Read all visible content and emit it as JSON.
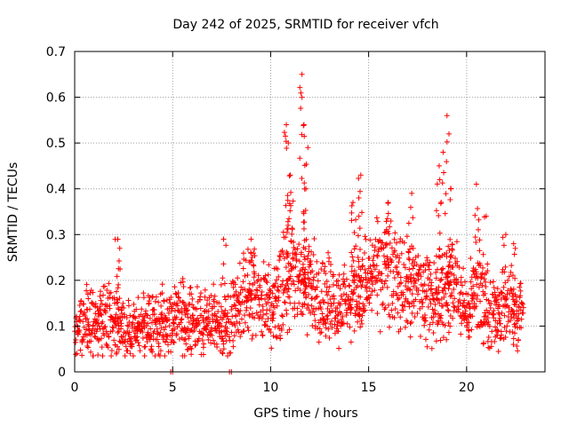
{
  "chart_data": {
    "type": "scatter",
    "title": "Day 242 of 2025, SRMTID for receiver vfch",
    "xlabel": "GPS time / hours",
    "ylabel": "SRMTID / TECUs",
    "xlim": [
      0,
      24
    ],
    "ylim": [
      0,
      0.7
    ],
    "xticks": [
      0,
      5,
      10,
      15,
      20
    ],
    "xtick_labels": [
      "0",
      "5",
      "10",
      "15",
      "20"
    ],
    "yticks": [
      0,
      0.1,
      0.2,
      0.3,
      0.4,
      0.5,
      0.6,
      0.7
    ],
    "ytick_labels": [
      "0",
      "0.1",
      "0.2",
      "0.3",
      "0.4",
      "0.5",
      "0.6",
      "0.7"
    ],
    "grid": true,
    "marker": "+",
    "series_color": "#ff0000",
    "series": [
      {
        "name": "SRMTID",
        "baseline": [
          [
            0.0,
            0.09
          ],
          [
            0.5,
            0.11
          ],
          [
            1.0,
            0.1
          ],
          [
            1.5,
            0.12
          ],
          [
            2.0,
            0.11
          ],
          [
            2.5,
            0.09
          ],
          [
            3.0,
            0.09
          ],
          [
            3.5,
            0.1
          ],
          [
            4.0,
            0.1
          ],
          [
            4.5,
            0.11
          ],
          [
            5.0,
            0.12
          ],
          [
            5.5,
            0.12
          ],
          [
            6.0,
            0.12
          ],
          [
            6.5,
            0.1
          ],
          [
            7.0,
            0.11
          ],
          [
            7.5,
            0.09
          ],
          [
            8.0,
            0.12
          ],
          [
            8.5,
            0.15
          ],
          [
            9.0,
            0.17
          ],
          [
            9.5,
            0.17
          ],
          [
            10.0,
            0.15
          ],
          [
            10.5,
            0.17
          ],
          [
            11.0,
            0.21
          ],
          [
            11.5,
            0.2
          ],
          [
            12.0,
            0.18
          ],
          [
            12.5,
            0.17
          ],
          [
            13.0,
            0.16
          ],
          [
            13.5,
            0.15
          ],
          [
            14.0,
            0.15
          ],
          [
            14.5,
            0.18
          ],
          [
            15.0,
            0.19
          ],
          [
            15.5,
            0.21
          ],
          [
            16.0,
            0.22
          ],
          [
            16.5,
            0.2
          ],
          [
            17.0,
            0.19
          ],
          [
            17.5,
            0.18
          ],
          [
            18.0,
            0.16
          ],
          [
            18.5,
            0.16
          ],
          [
            19.0,
            0.18
          ],
          [
            19.5,
            0.19
          ],
          [
            20.0,
            0.13
          ],
          [
            20.5,
            0.18
          ],
          [
            21.0,
            0.14
          ],
          [
            21.5,
            0.12
          ],
          [
            22.0,
            0.14
          ],
          [
            22.5,
            0.13
          ],
          [
            22.9,
            0.13
          ]
        ],
        "peaks": [
          [
            2.2,
            0.29
          ],
          [
            2.3,
            0.27
          ],
          [
            7.6,
            0.29
          ],
          [
            9.0,
            0.29
          ],
          [
            10.8,
            0.54
          ],
          [
            10.9,
            0.5
          ],
          [
            11.0,
            0.43
          ],
          [
            11.6,
            0.65
          ],
          [
            11.6,
            0.6
          ],
          [
            11.7,
            0.54
          ],
          [
            11.9,
            0.49
          ],
          [
            11.8,
            0.4
          ],
          [
            14.2,
            0.37
          ],
          [
            14.5,
            0.38
          ],
          [
            14.6,
            0.43
          ],
          [
            16.0,
            0.37
          ],
          [
            17.2,
            0.39
          ],
          [
            18.6,
            0.45
          ],
          [
            18.8,
            0.48
          ],
          [
            19.0,
            0.56
          ],
          [
            19.1,
            0.52
          ],
          [
            19.2,
            0.4
          ],
          [
            20.5,
            0.41
          ],
          [
            21.0,
            0.34
          ],
          [
            22.0,
            0.3
          ],
          [
            22.4,
            0.28
          ]
        ],
        "floor_points": [
          [
            4.9,
            0.0
          ],
          [
            5.0,
            0.0
          ],
          [
            7.9,
            0.0
          ],
          [
            8.0,
            0.0
          ]
        ]
      }
    ]
  }
}
